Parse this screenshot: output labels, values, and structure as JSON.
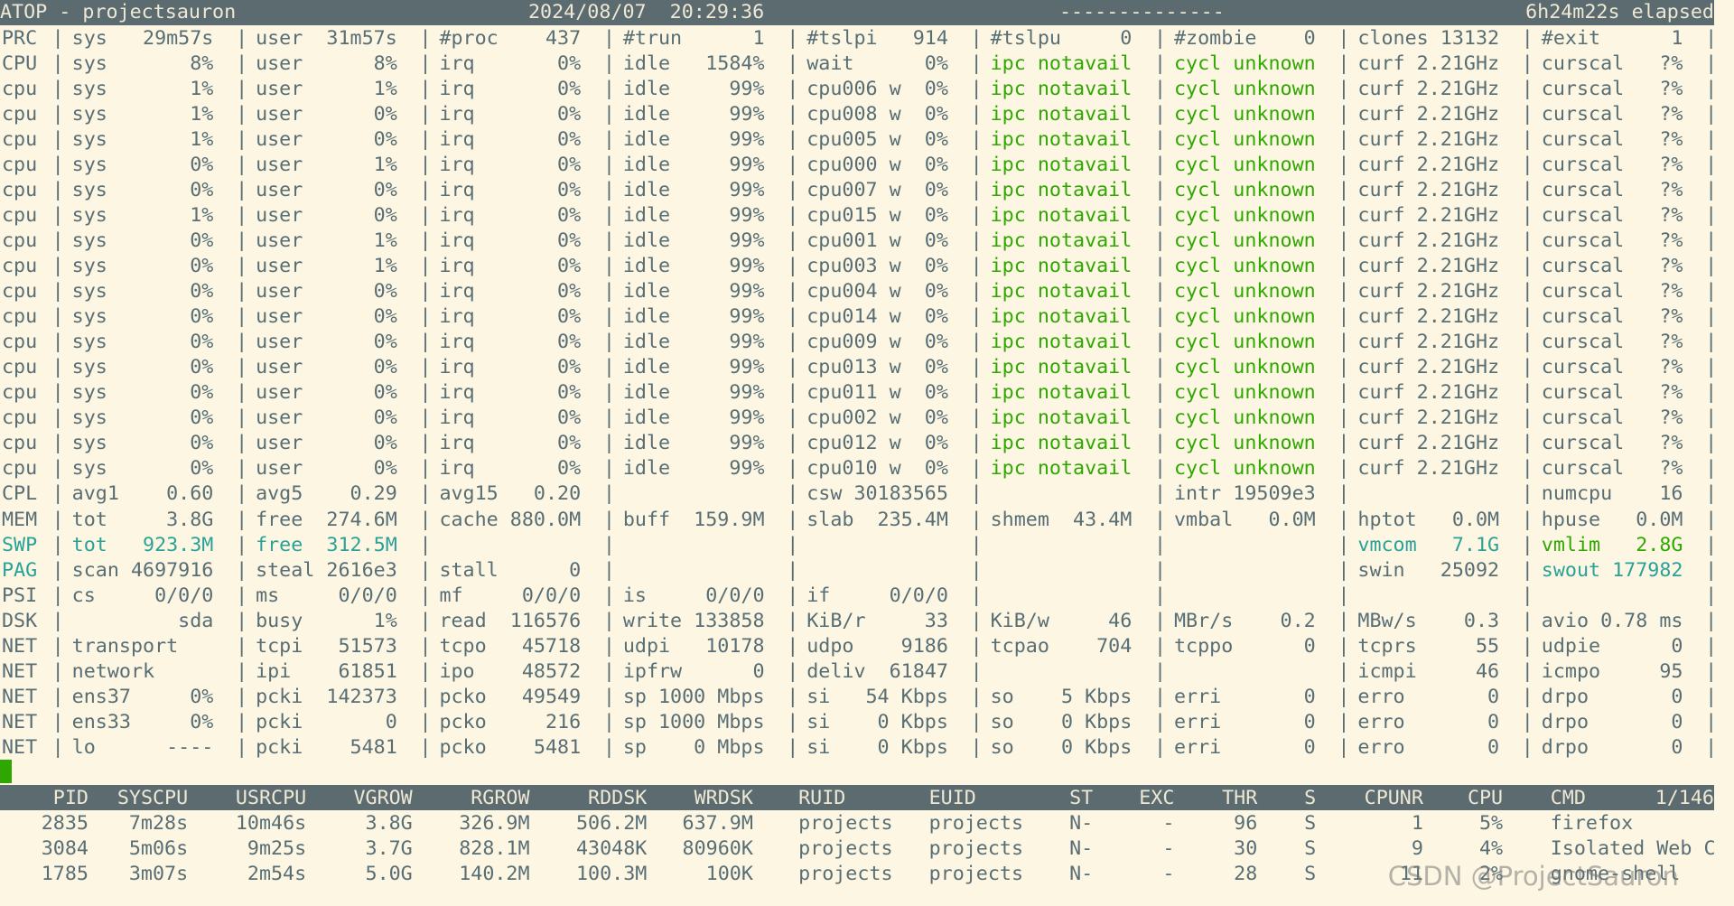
{
  "header": {
    "title": "ATOP - projectsauron",
    "datetime": "2024/08/07  20:29:36",
    "dashes": "--------------",
    "elapsed": "6h24m22s elapsed"
  },
  "rows": [
    {
      "label": "PRC",
      "cells": [
        "sys   29m57s",
        "user  31m57s",
        "#proc    437",
        "#trun      1",
        "#tslpi   914",
        "#tslpu     0",
        "#zombie    0",
        "clones 13132",
        "#exit      1"
      ]
    },
    {
      "label": "CPU",
      "cells": [
        "sys       8%",
        "user      8%",
        "irq       0%",
        "idle   1584%",
        "wait      0%",
        {
          "text": "ipc notavail",
          "color": "#2ea800"
        },
        {
          "text": "cycl unknown",
          "color": "#2ea800"
        },
        "curf 2.21GHz",
        "curscal   ?%"
      ]
    },
    {
      "label": "cpu",
      "cells": [
        "sys       1%",
        "user      1%",
        "irq       0%",
        "idle     99%",
        "cpu006 w  0%",
        {
          "text": "ipc notavail",
          "color": "#2ea800"
        },
        {
          "text": "cycl unknown",
          "color": "#2ea800"
        },
        "curf 2.21GHz",
        "curscal   ?%"
      ]
    },
    {
      "label": "cpu",
      "cells": [
        "sys       1%",
        "user      0%",
        "irq       0%",
        "idle     99%",
        "cpu008 w  0%",
        {
          "text": "ipc notavail",
          "color": "#2ea800"
        },
        {
          "text": "cycl unknown",
          "color": "#2ea800"
        },
        "curf 2.21GHz",
        "curscal   ?%"
      ]
    },
    {
      "label": "cpu",
      "cells": [
        "sys       1%",
        "user      0%",
        "irq       0%",
        "idle     99%",
        "cpu005 w  0%",
        {
          "text": "ipc notavail",
          "color": "#2ea800"
        },
        {
          "text": "cycl unknown",
          "color": "#2ea800"
        },
        "curf 2.21GHz",
        "curscal   ?%"
      ]
    },
    {
      "label": "cpu",
      "cells": [
        "sys       0%",
        "user      1%",
        "irq       0%",
        "idle     99%",
        "cpu000 w  0%",
        {
          "text": "ipc notavail",
          "color": "#2ea800"
        },
        {
          "text": "cycl unknown",
          "color": "#2ea800"
        },
        "curf 2.21GHz",
        "curscal   ?%"
      ]
    },
    {
      "label": "cpu",
      "cells": [
        "sys       0%",
        "user      0%",
        "irq       0%",
        "idle     99%",
        "cpu007 w  0%",
        {
          "text": "ipc notavail",
          "color": "#2ea800"
        },
        {
          "text": "cycl unknown",
          "color": "#2ea800"
        },
        "curf 2.21GHz",
        "curscal   ?%"
      ]
    },
    {
      "label": "cpu",
      "cells": [
        "sys       1%",
        "user      0%",
        "irq       0%",
        "idle     99%",
        "cpu015 w  0%",
        {
          "text": "ipc notavail",
          "color": "#2ea800"
        },
        {
          "text": "cycl unknown",
          "color": "#2ea800"
        },
        "curf 2.21GHz",
        "curscal   ?%"
      ]
    },
    {
      "label": "cpu",
      "cells": [
        "sys       0%",
        "user      1%",
        "irq       0%",
        "idle     99%",
        "cpu001 w  0%",
        {
          "text": "ipc notavail",
          "color": "#2ea800"
        },
        {
          "text": "cycl unknown",
          "color": "#2ea800"
        },
        "curf 2.21GHz",
        "curscal   ?%"
      ]
    },
    {
      "label": "cpu",
      "cells": [
        "sys       0%",
        "user      1%",
        "irq       0%",
        "idle     99%",
        "cpu003 w  0%",
        {
          "text": "ipc notavail",
          "color": "#2ea800"
        },
        {
          "text": "cycl unknown",
          "color": "#2ea800"
        },
        "curf 2.21GHz",
        "curscal   ?%"
      ]
    },
    {
      "label": "cpu",
      "cells": [
        "sys       0%",
        "user      0%",
        "irq       0%",
        "idle     99%",
        "cpu004 w  0%",
        {
          "text": "ipc notavail",
          "color": "#2ea800"
        },
        {
          "text": "cycl unknown",
          "color": "#2ea800"
        },
        "curf 2.21GHz",
        "curscal   ?%"
      ]
    },
    {
      "label": "cpu",
      "cells": [
        "sys       0%",
        "user      0%",
        "irq       0%",
        "idle     99%",
        "cpu014 w  0%",
        {
          "text": "ipc notavail",
          "color": "#2ea800"
        },
        {
          "text": "cycl unknown",
          "color": "#2ea800"
        },
        "curf 2.21GHz",
        "curscal   ?%"
      ]
    },
    {
      "label": "cpu",
      "cells": [
        "sys       0%",
        "user      0%",
        "irq       0%",
        "idle     99%",
        "cpu009 w  0%",
        {
          "text": "ipc notavail",
          "color": "#2ea800"
        },
        {
          "text": "cycl unknown",
          "color": "#2ea800"
        },
        "curf 2.21GHz",
        "curscal   ?%"
      ]
    },
    {
      "label": "cpu",
      "cells": [
        "sys       0%",
        "user      0%",
        "irq       0%",
        "idle     99%",
        "cpu013 w  0%",
        {
          "text": "ipc notavail",
          "color": "#2ea800"
        },
        {
          "text": "cycl unknown",
          "color": "#2ea800"
        },
        "curf 2.21GHz",
        "curscal   ?%"
      ]
    },
    {
      "label": "cpu",
      "cells": [
        "sys       0%",
        "user      0%",
        "irq       0%",
        "idle     99%",
        "cpu011 w  0%",
        {
          "text": "ipc notavail",
          "color": "#2ea800"
        },
        {
          "text": "cycl unknown",
          "color": "#2ea800"
        },
        "curf 2.21GHz",
        "curscal   ?%"
      ]
    },
    {
      "label": "cpu",
      "cells": [
        "sys       0%",
        "user      0%",
        "irq       0%",
        "idle     99%",
        "cpu002 w  0%",
        {
          "text": "ipc notavail",
          "color": "#2ea800"
        },
        {
          "text": "cycl unknown",
          "color": "#2ea800"
        },
        "curf 2.21GHz",
        "curscal   ?%"
      ]
    },
    {
      "label": "cpu",
      "cells": [
        "sys       0%",
        "user      0%",
        "irq       0%",
        "idle     99%",
        "cpu012 w  0%",
        {
          "text": "ipc notavail",
          "color": "#2ea800"
        },
        {
          "text": "cycl unknown",
          "color": "#2ea800"
        },
        "curf 2.21GHz",
        "curscal   ?%"
      ]
    },
    {
      "label": "cpu",
      "cells": [
        "sys       0%",
        "user      0%",
        "irq       0%",
        "idle     99%",
        "cpu010 w  0%",
        {
          "text": "ipc notavail",
          "color": "#2ea800"
        },
        {
          "text": "cycl unknown",
          "color": "#2ea800"
        },
        "curf 2.21GHz",
        "curscal   ?%"
      ]
    },
    {
      "label": "CPL",
      "cells": [
        "avg1    0.60",
        "avg5    0.29",
        "avg15   0.20",
        null,
        "csw 30183565",
        null,
        "intr 19509e3",
        null,
        "numcpu    16"
      ]
    },
    {
      "label": "MEM",
      "cells": [
        "tot     3.8G",
        "free  274.6M",
        "cache 880.0M",
        "buff  159.9M",
        "slab  235.4M",
        "shmem  43.4M",
        "vmbal   0.0M",
        "hptot   0.0M",
        "hpuse   0.0M"
      ]
    },
    {
      "label": {
        "text": "SWP",
        "color": "#2aa198"
      },
      "cells": [
        {
          "text": "tot   923.3M",
          "color": "#2aa198"
        },
        {
          "text": "free  312.5M",
          "color": "#2aa198"
        },
        null,
        null,
        null,
        null,
        null,
        {
          "text": "vmcom   7.1G",
          "color": "#2aa198"
        },
        {
          "text": "vmlim   2.8G",
          "color": "#2ea800"
        }
      ]
    },
    {
      "label": {
        "text": "PAG",
        "color": "#2aa198"
      },
      "cells": [
        "scan 4697916",
        "steal 2616e3",
        "stall      0",
        null,
        null,
        null,
        null,
        "swin   25092",
        {
          "text": "swout 177982",
          "color": "#2aa198"
        }
      ]
    },
    {
      "label": "PSI",
      "cells": [
        "cs     0/0/0",
        "ms     0/0/0",
        "mf     0/0/0",
        "is     0/0/0",
        "if     0/0/0",
        null,
        null,
        null,
        null
      ]
    },
    {
      "label": "DSK",
      "cells": [
        "         sda",
        "busy      1%",
        "read  116576",
        "write 133858",
        "KiB/r     33",
        "KiB/w     46",
        "MBr/s    0.2",
        "MBw/s    0.3",
        "avio 0.78 ms"
      ]
    },
    {
      "label": "NET",
      "cells": [
        "transport",
        "tcpi   51573",
        "tcpo   45718",
        "udpi   10178",
        "udpo    9186",
        "tcpao    704",
        "tcppo      0",
        "tcprs     55",
        "udpie      0"
      ]
    },
    {
      "label": "NET",
      "cells": [
        "network",
        "ipi    61851",
        "ipo    48572",
        "ipfrw      0",
        "deliv  61847",
        null,
        null,
        "icmpi     46",
        "icmpo     95"
      ]
    },
    {
      "label": "NET",
      "cells": [
        "ens37     0%",
        "pcki  142373",
        "pcko   49549",
        "sp 1000 Mbps",
        "si   54 Kbps",
        "so    5 Kbps",
        "erri       0",
        "erro       0",
        "drpo       0"
      ]
    },
    {
      "label": "NET",
      "cells": [
        "ens33     0%",
        "pcki       0",
        "pcko     216",
        "sp 1000 Mbps",
        "si    0 Kbps",
        "so    0 Kbps",
        "erri       0",
        "erro       0",
        "drpo       0"
      ]
    },
    {
      "label": "NET",
      "cells": [
        "lo      ----",
        "pcki    5481",
        "pcko    5481",
        "sp    0 Mbps",
        "si    0 Kbps",
        "so    0 Kbps",
        "erri       0",
        "erro       0",
        "drpo       0"
      ]
    }
  ],
  "process_table": {
    "columns": [
      "PID",
      "SYSCPU",
      "USRCPU",
      "VGROW",
      "RGROW",
      "RDDSK",
      "WRDSK",
      "RUID",
      "EUID",
      "ST",
      "EXC",
      "THR",
      "S",
      "CPUNR",
      "CPU",
      "CMD"
    ],
    "page": "1/146",
    "rows": [
      [
        "2835",
        "7m28s",
        "10m46s",
        "3.8G",
        "326.9M",
        "506.2M",
        "637.9M",
        "projects",
        "projects",
        "N-",
        "-",
        "96",
        "S",
        "1",
        "5%",
        "firefox"
      ],
      [
        "3084",
        "5m06s",
        "9m25s",
        "3.7G",
        "828.1M",
        "43048K",
        "80960K",
        "projects",
        "projects",
        "N-",
        "-",
        "30",
        "S",
        "9",
        "4%",
        "Isolated Web C"
      ],
      [
        "1785",
        "3m07s",
        "2m54s",
        "5.0G",
        "140.2M",
        "100.3M",
        "100K",
        "projects",
        "projects",
        "N-",
        "-",
        "28",
        "S",
        "11",
        "2%",
        "gnome-shell"
      ]
    ]
  },
  "watermark": "CSDN @ProjectSauron"
}
